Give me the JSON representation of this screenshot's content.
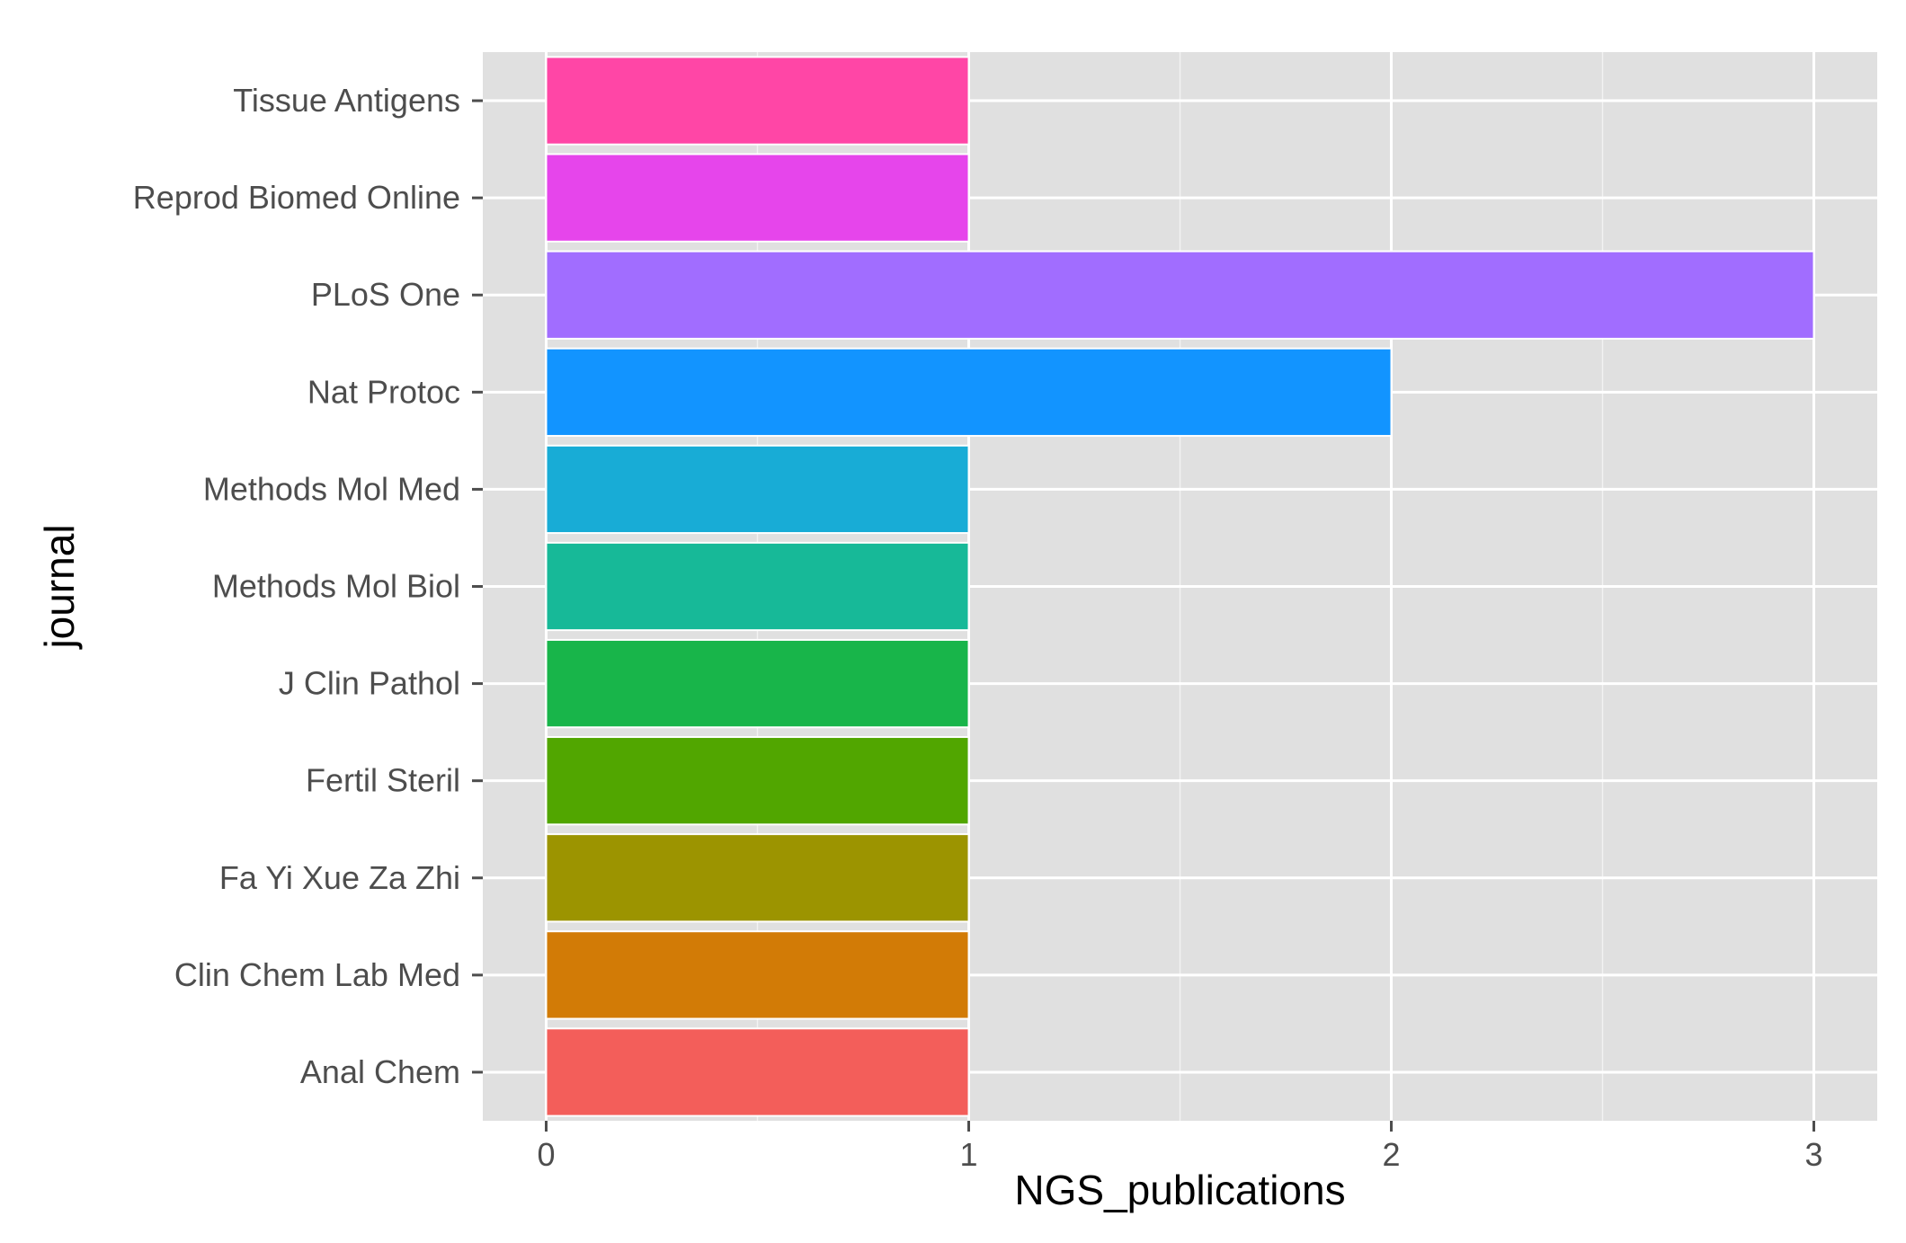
{
  "chart_data": {
    "type": "bar",
    "orientation": "horizontal",
    "title": "",
    "xlabel": "NGS_publications",
    "ylabel": "journal",
    "xlim": [
      -0.15,
      3.15
    ],
    "x_ticks": [
      0,
      1,
      2,
      3
    ],
    "grid": true,
    "legend": "none",
    "categories": [
      "Anal Chem",
      "Clin Chem Lab Med",
      "Fa Yi Xue Za Zhi",
      "Fertil Steril",
      "J Clin Pathol",
      "Methods Mol Biol",
      "Methods Mol Med",
      "Nat Protoc",
      "PLoS One",
      "Reprod Biomed Online",
      "Tissue Antigens"
    ],
    "values": [
      1,
      1,
      1,
      1,
      1,
      1,
      1,
      2,
      3,
      1,
      1
    ],
    "colors": [
      "#F35E5A",
      "#D27B06",
      "#9C9400",
      "#51A600",
      "#18B54A",
      "#17B998",
      "#18ACD6",
      "#1294FF",
      "#A16DFF",
      "#E645EB",
      "#FF46A6"
    ]
  }
}
